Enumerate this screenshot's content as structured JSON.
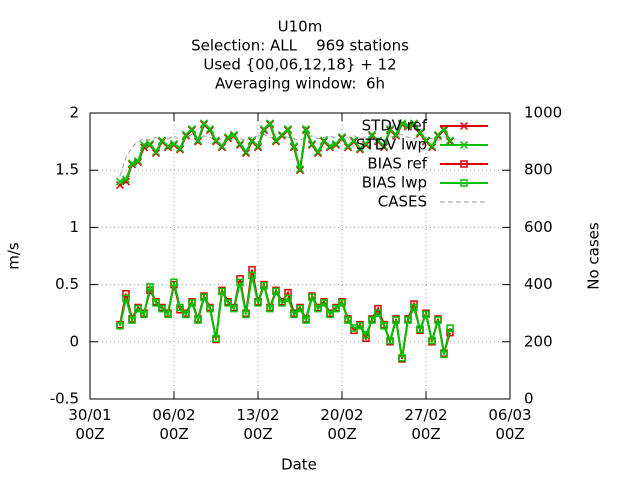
{
  "chart_data": {
    "type": "line",
    "title": "U10m",
    "subtitle": [
      "Selection: ALL    969 stations",
      "Used {00,06,12,18} + 12",
      "Averaging window:  6h"
    ],
    "x_label": "Date",
    "y_label": "m/s",
    "y2_label": "No cases",
    "x": [
      60,
      72,
      84,
      96,
      108,
      120,
      132,
      144,
      156,
      168,
      180,
      192,
      204,
      216,
      228,
      240,
      252,
      264,
      276,
      288,
      300,
      312,
      324,
      336,
      348,
      360,
      372,
      384,
      396,
      408,
      420,
      432,
      444,
      456,
      468,
      480,
      492,
      504,
      516,
      528,
      540,
      552,
      564,
      576,
      588,
      600,
      612,
      624,
      636,
      648,
      660,
      672,
      684,
      696,
      708,
      720
    ],
    "xlim": [
      0,
      840
    ],
    "xticks": [
      {
        "value": 0,
        "label": "30/01\n00Z"
      },
      {
        "value": 168,
        "label": "06/02\n00Z"
      },
      {
        "value": 336,
        "label": "13/02\n00Z"
      },
      {
        "value": 504,
        "label": "20/02\n00Z"
      },
      {
        "value": 672,
        "label": "27/02\n00Z"
      },
      {
        "value": 840,
        "label": "06/03\n00Z"
      }
    ],
    "ylim": [
      -0.5,
      2
    ],
    "yticks": [
      -0.5,
      0,
      0.5,
      1,
      1.5,
      2
    ],
    "y2lim": [
      0,
      1000
    ],
    "y2ticks": [
      0,
      200,
      400,
      600,
      800,
      1000
    ],
    "grid": true,
    "legend": "top-right",
    "series": [
      {
        "name": "STDV ref",
        "color": "#e00000",
        "marker": "cross",
        "values": [
          1.37,
          1.4,
          1.55,
          1.57,
          1.7,
          1.72,
          1.65,
          1.75,
          1.7,
          1.72,
          1.68,
          1.8,
          1.85,
          1.75,
          1.9,
          1.85,
          1.75,
          1.7,
          1.78,
          1.8,
          1.72,
          1.65,
          1.75,
          1.7,
          1.85,
          1.9,
          1.75,
          1.8,
          1.85,
          1.7,
          1.5,
          1.85,
          1.72,
          1.65,
          1.75,
          1.7,
          1.72,
          1.78,
          1.7,
          1.75,
          1.68,
          1.72,
          1.8,
          1.75,
          1.7,
          1.85,
          1.8,
          1.9,
          1.88,
          1.9,
          1.82,
          1.75,
          1.7,
          1.8,
          1.85,
          1.75
        ]
      },
      {
        "name": "STDV lwp",
        "color": "#00c000",
        "marker": "cross",
        "values": [
          1.4,
          1.42,
          1.56,
          1.58,
          1.72,
          1.73,
          1.66,
          1.76,
          1.71,
          1.73,
          1.69,
          1.81,
          1.86,
          1.76,
          1.91,
          1.86,
          1.76,
          1.71,
          1.79,
          1.81,
          1.73,
          1.66,
          1.76,
          1.71,
          1.86,
          1.91,
          1.76,
          1.81,
          1.86,
          1.71,
          1.51,
          1.86,
          1.73,
          1.66,
          1.76,
          1.71,
          1.73,
          1.79,
          1.71,
          1.76,
          1.69,
          1.73,
          1.81,
          1.76,
          1.71,
          1.86,
          1.81,
          1.91,
          1.89,
          1.91,
          1.83,
          1.76,
          1.71,
          1.81,
          1.86,
          1.76
        ]
      },
      {
        "name": "BIAS ref",
        "color": "#e00000",
        "marker": "square",
        "values": [
          0.15,
          0.42,
          0.2,
          0.3,
          0.25,
          0.45,
          0.35,
          0.3,
          0.25,
          0.5,
          0.28,
          0.25,
          0.35,
          0.2,
          0.4,
          0.3,
          0.02,
          0.45,
          0.35,
          0.3,
          0.55,
          0.25,
          0.63,
          0.35,
          0.5,
          0.3,
          0.45,
          0.35,
          0.43,
          0.25,
          0.3,
          0.2,
          0.4,
          0.3,
          0.35,
          0.25,
          0.3,
          0.35,
          0.2,
          0.1,
          0.15,
          0.03,
          0.2,
          0.29,
          0.15,
          0.0,
          0.2,
          -0.15,
          0.2,
          0.33,
          0.1,
          0.25,
          0.0,
          0.2,
          -0.1,
          0.08
        ]
      },
      {
        "name": "BIAS lwp",
        "color": "#00c000",
        "marker": "square",
        "values": [
          0.14,
          0.38,
          0.19,
          0.29,
          0.24,
          0.48,
          0.34,
          0.29,
          0.24,
          0.52,
          0.3,
          0.24,
          0.34,
          0.19,
          0.39,
          0.29,
          0.03,
          0.44,
          0.34,
          0.29,
          0.52,
          0.24,
          0.58,
          0.34,
          0.49,
          0.29,
          0.44,
          0.34,
          0.38,
          0.24,
          0.29,
          0.19,
          0.39,
          0.29,
          0.34,
          0.24,
          0.29,
          0.34,
          0.19,
          0.12,
          0.14,
          0.06,
          0.19,
          0.25,
          0.14,
          0.01,
          0.19,
          -0.14,
          0.19,
          0.3,
          0.11,
          0.24,
          0.01,
          0.19,
          -0.11,
          0.12
        ]
      },
      {
        "name": "CASES",
        "color": "#a0a0a0",
        "marker": "none",
        "dash": true,
        "axis": "y2",
        "values": [
          780,
          845,
          880,
          900,
          910,
          905,
          915,
          900,
          910,
          920,
          905,
          915,
          925,
          910,
          920,
          915,
          905,
          910,
          915,
          920,
          910,
          905,
          915,
          920,
          925,
          915,
          910,
          920,
          915,
          910,
          905,
          915,
          920,
          910,
          915,
          920,
          910,
          905,
          915,
          920,
          910,
          915,
          920,
          910,
          905,
          915,
          920,
          925,
          915,
          910,
          920,
          915,
          910,
          905,
          915,
          920
        ]
      }
    ]
  }
}
